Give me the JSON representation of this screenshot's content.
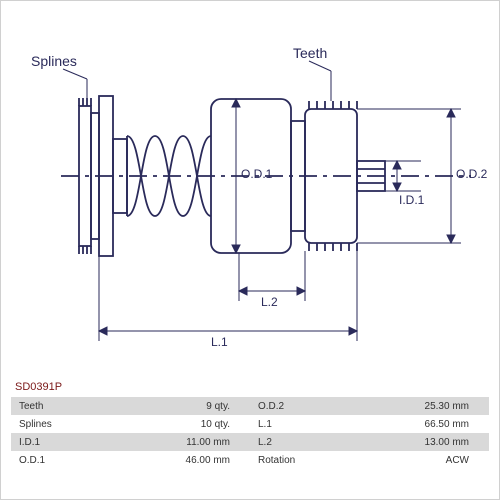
{
  "part_number": "SD0391P",
  "labels": {
    "splines": "Splines",
    "teeth": "Teeth"
  },
  "dimensions": {
    "od1": "O.D.1",
    "od2": "O.D.2",
    "id1": "I.D.1",
    "l1": "L.1",
    "l2": "L.2"
  },
  "specs": [
    {
      "k1": "Teeth",
      "v1": "9 qty.",
      "k2": "O.D.2",
      "v2": "25.30 mm"
    },
    {
      "k1": "Splines",
      "v1": "10 qty.",
      "k2": "L.1",
      "v2": "66.50 mm"
    },
    {
      "k1": "I.D.1",
      "v1": "11.00 mm",
      "k2": "L.2",
      "v2": "13.00 mm"
    },
    {
      "k1": "O.D.1",
      "v1": "46.00 mm",
      "k2": "Rotation",
      "v2": "ACW"
    }
  ],
  "colors": {
    "line": "#2a2a5a",
    "bg": "#ffffff",
    "row_alt": "#d9d9d9",
    "part_num": "#7a1818"
  }
}
